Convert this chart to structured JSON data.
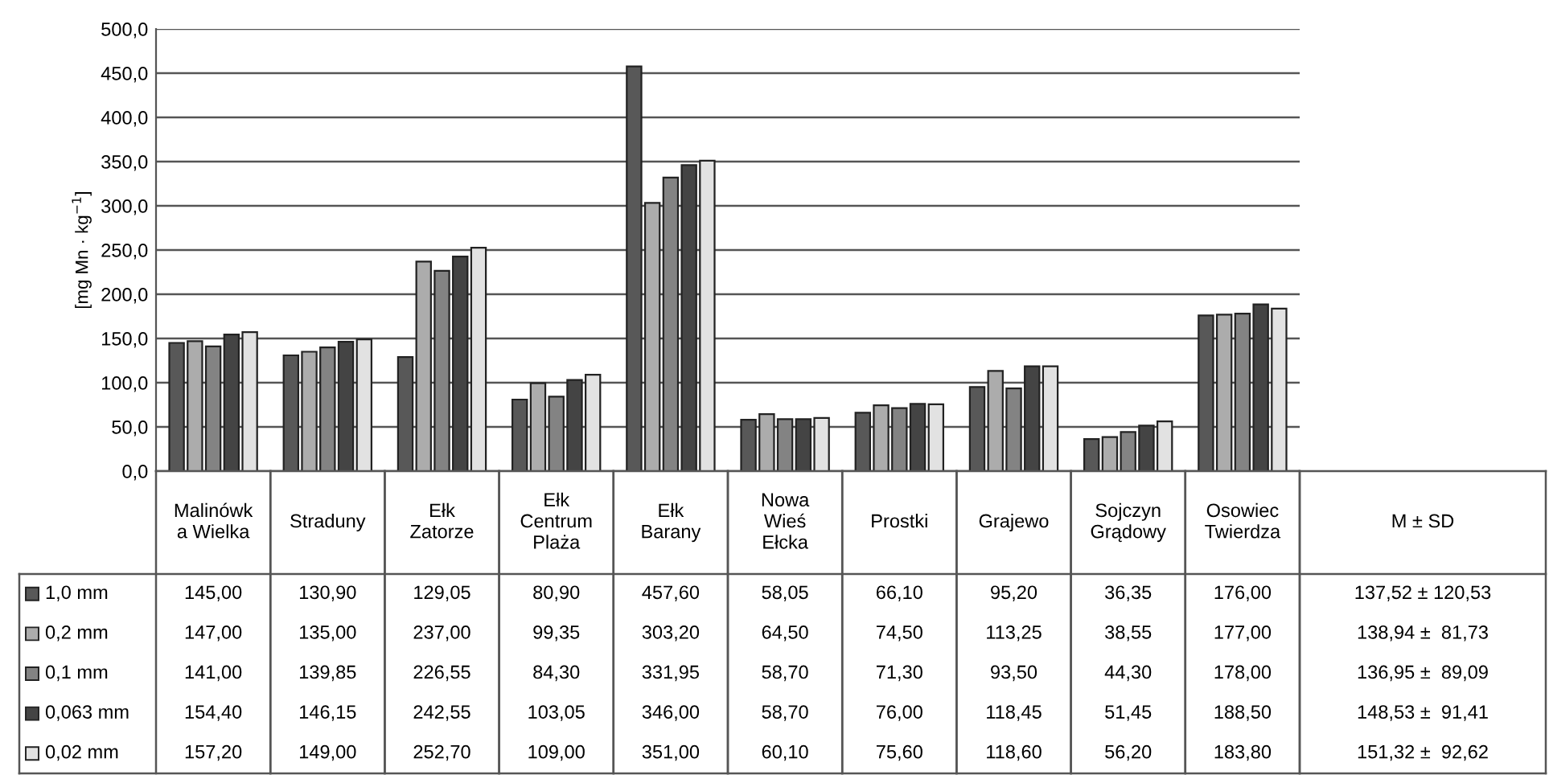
{
  "chart_data": {
    "type": "bar",
    "ylabel": "[mg Mn · kg$^{−1}$]",
    "categories": [
      "Malinówk\na Wielka",
      "Straduny",
      "Ełk\nZatorze",
      "Ełk\nCentrum\nPlaża",
      "Ełk\nBarany",
      "Nowa\nWieś\nEłcka",
      "Prostki",
      "Grajewo",
      "Sojczyn\nGrądowy",
      "Osowiec\nTwierdza",
      "M ± SD"
    ],
    "series": [
      {
        "name": "1,0 mm",
        "color": "#585858",
        "values": [
          145.0,
          130.9,
          129.05,
          80.9,
          457.6,
          58.05,
          66.1,
          95.2,
          36.35,
          176.0,
          null
        ],
        "value_labels": [
          "145,00",
          "130,90",
          "129,05",
          "80,90",
          "457,60",
          "58,05",
          "66,10",
          "95,20",
          "36,35",
          "176,00",
          "137,52 ± 120,53"
        ]
      },
      {
        "name": "0,2 mm",
        "color": "#acacac",
        "values": [
          147.0,
          135.0,
          237.0,
          99.35,
          303.2,
          64.5,
          74.5,
          113.25,
          38.55,
          177.0,
          null
        ],
        "value_labels": [
          "147,00",
          "135,00",
          "237,00",
          "99,35",
          "303,20",
          "64,50",
          "74,50",
          "113,25",
          "38,55",
          "177,00",
          "138,94 ±  81,73"
        ]
      },
      {
        "name": "0,1 mm",
        "color": "#838383",
        "values": [
          141.0,
          139.85,
          226.55,
          84.3,
          331.95,
          58.7,
          71.3,
          93.5,
          44.3,
          178.0,
          null
        ],
        "value_labels": [
          "141,00",
          "139,85",
          "226,55",
          "84,30",
          "331,95",
          "58,70",
          "71,30",
          "93,50",
          "44,30",
          "178,00",
          "136,95 ±  89,09"
        ]
      },
      {
        "name": "0,063 mm",
        "color": "#444444",
        "values": [
          154.4,
          146.15,
          242.55,
          103.05,
          346.0,
          58.7,
          76.0,
          118.45,
          51.45,
          188.5,
          null
        ],
        "value_labels": [
          "154,40",
          "146,15",
          "242,55",
          "103,05",
          "346,00",
          "58,70",
          "76,00",
          "118,45",
          "51,45",
          "188,50",
          "148,53 ±  91,41"
        ]
      },
      {
        "name": "0,02 mm",
        "color": "#e2e2e2",
        "values": [
          157.2,
          149.0,
          252.7,
          109.0,
          351.0,
          60.1,
          75.6,
          118.6,
          56.2,
          183.8,
          null
        ],
        "value_labels": [
          "157,20",
          "149,00",
          "252,70",
          "109,00",
          "351,00",
          "60,10",
          "75,60",
          "118,60",
          "56,20",
          "183,80",
          "151,32 ±  92,62"
        ]
      }
    ],
    "ylim": [
      0,
      500
    ],
    "yticks": [
      {
        "value": 0,
        "label": "0,0"
      },
      {
        "value": 50,
        "label": "50,0"
      },
      {
        "value": 100,
        "label": "100,0"
      },
      {
        "value": 150,
        "label": "150,0"
      },
      {
        "value": 200,
        "label": "200,0"
      },
      {
        "value": 250,
        "label": "250,0"
      },
      {
        "value": 300,
        "label": "300,0"
      },
      {
        "value": 350,
        "label": "350,0"
      },
      {
        "value": 400,
        "label": "400,0"
      },
      {
        "value": 450,
        "label": "450,0"
      },
      {
        "value": 500,
        "label": "500,0"
      }
    ],
    "grid": "y",
    "legend": "bottom left"
  }
}
